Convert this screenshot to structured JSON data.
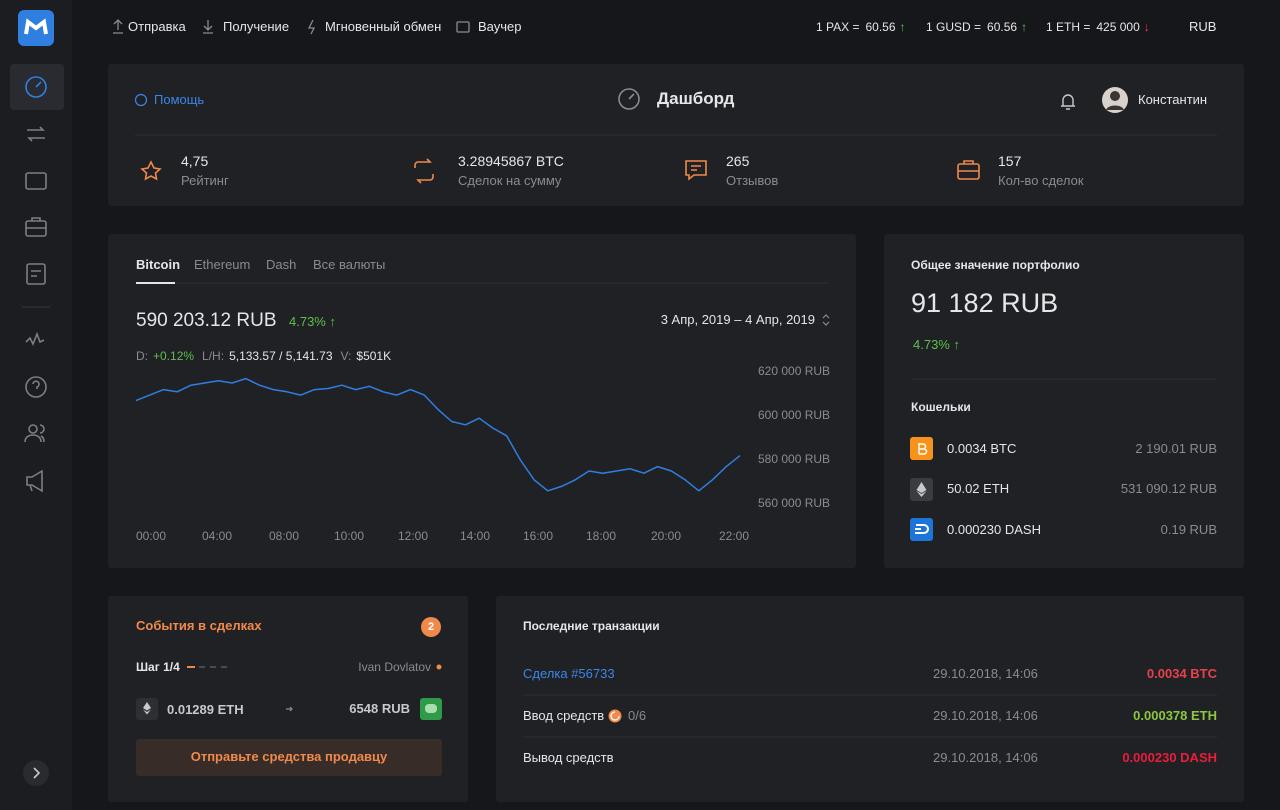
{
  "nav": {
    "links": [
      "Отправка",
      "Получение",
      "Мгновенный обмен",
      "Ваучер"
    ],
    "rates": [
      {
        "label": "1 PAX =",
        "value": "60.56",
        "arrow": "↑",
        "color": "#5fbf4c"
      },
      {
        "label": "1 GUSD =",
        "value": "60.56",
        "arrow": "↑",
        "color": "#5fbf4c"
      },
      {
        "label": "1 ETH =",
        "value": "425 000",
        "arrow": "↓",
        "color": "#e8404e"
      }
    ],
    "currency": "RUB"
  },
  "header": {
    "help": "Помощь",
    "title": "Дашборд",
    "user": "Константин"
  },
  "stats": [
    {
      "value": "4,75",
      "label": "Рейтинг"
    },
    {
      "value": "3.28945867 BTC",
      "label": "Сделок на сумму"
    },
    {
      "value": "265",
      "label": "Отзывов"
    },
    {
      "value": "157",
      "label": "Кол-во сделок"
    }
  ],
  "market": {
    "tabs": [
      "Bitcoin",
      "Ethereum",
      "Dash",
      "Все валюты"
    ],
    "price": "590 203.12 RUB",
    "change": "4.73% ↑",
    "date_range": "3 Апр, 2019 – 4 Апр, 2019",
    "details": [
      {
        "label": "D:",
        "value": "+0.12%"
      },
      {
        "label": "L/H:",
        "value": "5,133.57 / 5,141.73"
      },
      {
        "label": "V:",
        "value": "$501K"
      }
    ]
  },
  "chart": {
    "type": "line",
    "color": "#2f7fe0",
    "x": [
      0,
      0.5,
      1,
      1.5,
      2,
      2.5,
      3,
      3.5,
      4,
      4.5,
      5,
      5.5,
      6,
      6.5,
      7,
      7.5,
      8,
      8.5,
      9,
      9.5,
      10,
      10.5,
      11,
      11.5,
      12,
      12.5,
      13,
      13.5,
      14,
      14.5,
      15,
      15.5,
      16,
      16.5,
      17,
      17.5,
      18,
      18.5,
      19,
      19.5,
      20,
      20.5,
      21,
      21.5,
      22
    ],
    "values": [
      607000,
      609500,
      612000,
      611000,
      614000,
      615000,
      616000,
      615000,
      617000,
      614000,
      612000,
      611000,
      609500,
      612000,
      612500,
      614000,
      612000,
      613500,
      611000,
      609500,
      612000,
      609500,
      603000,
      597500,
      596000,
      599000,
      594500,
      591000,
      580000,
      571000,
      566000,
      568000,
      571000,
      575000,
      574000,
      575000,
      576000,
      574000,
      577000,
      575000,
      571000,
      566000,
      571000,
      577000,
      582000
    ],
    "xlim": [
      0,
      22
    ],
    "xticks": [
      {
        "value": 0,
        "label": "00:00"
      },
      {
        "value": 2,
        "label": "04:00"
      },
      {
        "value": 4,
        "label": "08:00"
      },
      {
        "value": 6,
        "label": "10:00"
      },
      {
        "value": 8,
        "label": "12:00"
      },
      {
        "value": 10,
        "label": "14:00"
      },
      {
        "value": 12,
        "label": "16:00"
      },
      {
        "value": 14,
        "label": "18:00"
      },
      {
        "value": 16,
        "label": "20:00"
      },
      {
        "value": 18,
        "label": "22:00"
      }
    ],
    "ylim": [
      555000,
      625000
    ],
    "yticks": [
      {
        "value": 560000,
        "label": "560 000 RUB"
      },
      {
        "value": 580000,
        "label": "580 000 RUB"
      },
      {
        "value": 600000,
        "label": "600 000 RUB"
      },
      {
        "value": 620000,
        "label": "620 000 RUB"
      }
    ]
  },
  "portfolio": {
    "title": "Общее значение портфолио",
    "value": "91 182 RUB",
    "change": "4.73% ↑",
    "wallets_title": "Кошельки",
    "wallets": [
      {
        "amount": "0.0034 BTC",
        "value": "2 190.01 RUB"
      },
      {
        "amount": "50.02 ETH",
        "value": "531 090.12 RUB"
      },
      {
        "amount": "0.000230 DASH",
        "value": "0.19 RUB"
      }
    ]
  },
  "events": {
    "title": "События в сделках",
    "badge": "2",
    "step": "Шаг 1/4",
    "user": "Ivan Dovlatov",
    "from": "0.01289 ETH",
    "to": "6548 RUB",
    "button": "Отправьте средства продавцу"
  },
  "transactions": {
    "title": "Последние транзакции",
    "rows": [
      {
        "name": "Сделка #56733",
        "date": "29.10.2018, 14:06",
        "amount": "0.0034 BTC",
        "color": "#e8404e"
      },
      {
        "name": "Ввод средств",
        "progress": "0/6",
        "date": "29.10.2018, 14:06",
        "amount": "0.000378 ETH",
        "color": "#8dc63f"
      },
      {
        "name": "Вывод средств",
        "date": "29.10.2018, 14:06",
        "amount": "0.000230 DASH",
        "color": "#e81e3a"
      }
    ]
  }
}
